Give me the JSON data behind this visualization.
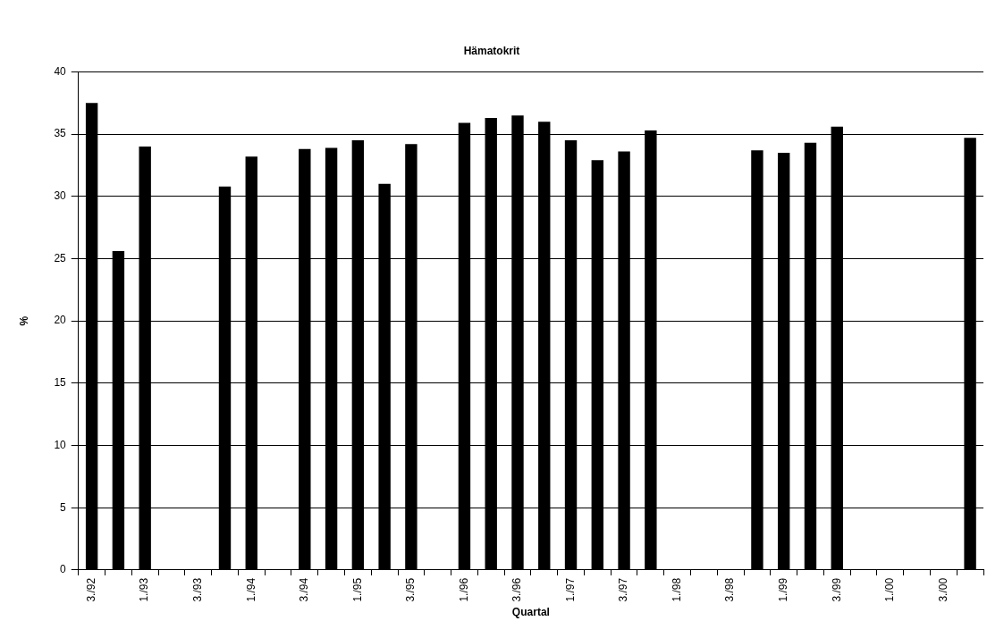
{
  "chart_data": {
    "type": "bar",
    "title": "Hämatokrit",
    "xlabel": "Quartal",
    "ylabel": "%",
    "categories": [
      "3./92",
      null,
      "1./93",
      null,
      "3./93",
      null,
      "1./94",
      null,
      "3./94",
      null,
      "1./95",
      null,
      "3./95",
      null,
      "1./96",
      null,
      "3./96",
      null,
      "1./97",
      null,
      "3./97",
      null,
      "1./98",
      null,
      "3./98",
      null,
      "1./99",
      null,
      "3./99",
      null,
      "1./00",
      null,
      "3./00",
      null
    ],
    "values": [
      37.5,
      25.6,
      34.0,
      null,
      null,
      30.8,
      33.2,
      null,
      33.8,
      33.9,
      34.5,
      31.0,
      34.2,
      null,
      35.9,
      36.3,
      36.5,
      36.0,
      34.5,
      32.9,
      33.6,
      35.3,
      null,
      null,
      null,
      33.7,
      33.5,
      34.3,
      35.6,
      null,
      null,
      null,
      null,
      34.7
    ],
    "color": "#000000",
    "ylim": [
      0,
      40
    ],
    "yticks": [
      0,
      5,
      10,
      15,
      20,
      25,
      30,
      35,
      40
    ],
    "grid": "y"
  }
}
